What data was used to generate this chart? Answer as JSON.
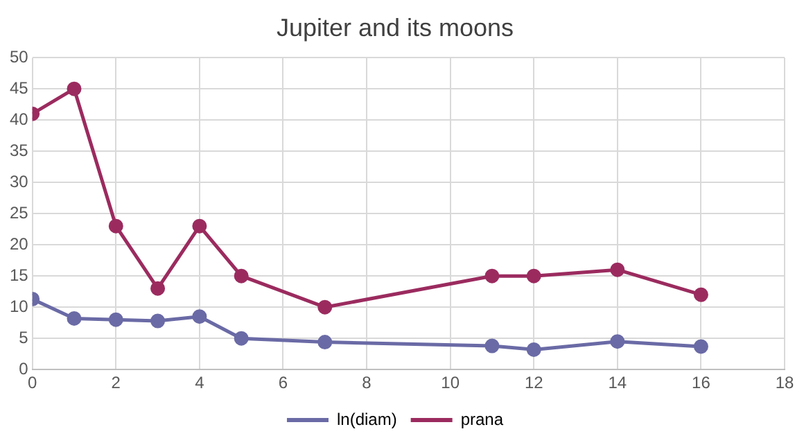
{
  "chart_data": {
    "type": "line",
    "title": "Jupiter and its moons",
    "x": [
      0,
      1,
      2,
      3,
      4,
      5,
      7,
      11,
      12,
      14,
      16
    ],
    "series": [
      {
        "name": "ln(diam)",
        "color": "#6a6aa6",
        "values": [
          11.3,
          8.2,
          8.0,
          7.8,
          8.5,
          5.0,
          4.4,
          3.8,
          3.2,
          4.5,
          3.7
        ]
      },
      {
        "name": "prana",
        "color": "#9b2b5f",
        "values": [
          41,
          45,
          23,
          13,
          23,
          15,
          10,
          15,
          15,
          16,
          12
        ]
      }
    ],
    "xlim": [
      0,
      18
    ],
    "xticks": [
      0,
      2,
      4,
      6,
      8,
      10,
      12,
      14,
      16,
      18
    ],
    "ylim": [
      0,
      50
    ],
    "yticks": [
      0,
      5,
      10,
      15,
      20,
      25,
      30,
      35,
      40,
      45,
      50
    ],
    "grid": true,
    "legend": "bottom",
    "marker": "circle",
    "line_style": "solid"
  }
}
